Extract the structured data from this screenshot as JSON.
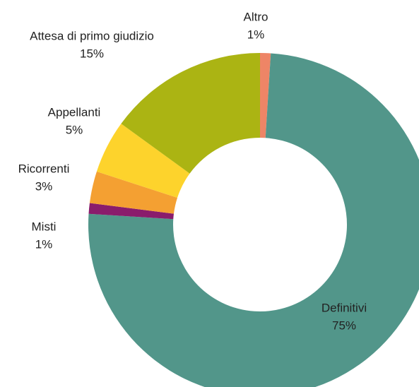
{
  "chart_data": {
    "type": "donut",
    "categories": [
      "Altro",
      "Definitivi",
      "Misti",
      "Ricorrenti",
      "Appellanti",
      "Attesa di primo giudizio"
    ],
    "values": [
      1,
      75,
      1,
      3,
      5,
      15
    ],
    "value_labels": [
      "1%",
      "75%",
      "1%",
      "3%",
      "5%",
      "15%"
    ],
    "colors": [
      "#ee8566",
      "#52968a",
      "#8a1c6c",
      "#f4a032",
      "#fdd32c",
      "#abb413"
    ]
  }
}
